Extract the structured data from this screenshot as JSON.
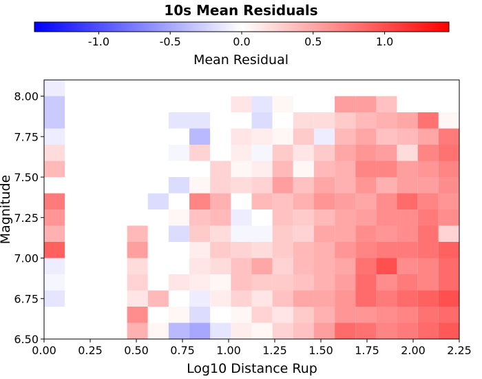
{
  "chart_data": {
    "type": "heatmap",
    "title": "10s Mean Residuals",
    "xlabel": "Log10 Distance Rup",
    "ylabel": "Magnitude",
    "xlim": [
      0.0,
      2.25
    ],
    "ylim": [
      6.5,
      8.1
    ],
    "x_ticks": [
      "0.00",
      "0.25",
      "0.50",
      "0.75",
      "1.00",
      "1.25",
      "1.50",
      "1.75",
      "2.00",
      "2.25"
    ],
    "y_ticks": [
      "6.50",
      "6.75",
      "7.00",
      "7.25",
      "7.50",
      "7.75",
      "8.00"
    ],
    "colorbar": {
      "label": "Mean Residual",
      "range": [
        -1.45,
        1.45
      ],
      "ticks": [
        "-1.0",
        "-0.5",
        "0.0",
        "0.5",
        "1.0"
      ],
      "colors": [
        "#0000ff",
        "#ffffff",
        "#ff0000"
      ]
    },
    "grid": {
      "x_bin_edges": [
        0.0,
        0.1125
      ],
      "x_bin_width": 0.1125,
      "y_bin_start": 6.5,
      "y_bin_width": 0.1,
      "columns": 20,
      "rows": 16
    },
    "values": [
      [
        null,
        null,
        null,
        null,
        0.45,
        0.05,
        -0.4,
        -0.5,
        -0.15,
        0.1,
        0.05,
        0.25,
        0.35,
        0.55,
        0.85,
        0.8,
        0.7,
        0.75,
        0.85,
        0.95
      ],
      [
        null,
        null,
        null,
        null,
        0.65,
        0.0,
        0.05,
        -0.2,
        0.0,
        0.05,
        0.25,
        0.15,
        0.3,
        0.45,
        0.6,
        0.6,
        0.65,
        0.7,
        0.8,
        0.85
      ],
      [
        -0.15,
        null,
        null,
        null,
        0.15,
        0.4,
        0.0,
        -0.1,
        0.1,
        0.25,
        0.15,
        0.35,
        0.5,
        0.5,
        0.6,
        0.85,
        0.75,
        0.85,
        0.9,
        1.0
      ],
      [
        -0.05,
        null,
        null,
        null,
        0.25,
        0.0,
        0.15,
        0.1,
        0.05,
        0.35,
        0.3,
        0.3,
        0.35,
        0.45,
        0.55,
        0.85,
        0.65,
        0.75,
        0.7,
        0.85
      ],
      [
        -0.1,
        null,
        null,
        null,
        0.2,
        0.0,
        0.0,
        0.15,
        0.2,
        0.35,
        0.5,
        0.25,
        0.4,
        0.45,
        0.5,
        0.8,
        1.0,
        0.65,
        0.7,
        0.85
      ],
      [
        0.9,
        null,
        null,
        null,
        0.55,
        0.0,
        0.0,
        0.1,
        0.3,
        0.25,
        0.2,
        0.3,
        0.4,
        0.45,
        0.6,
        0.7,
        0.75,
        0.75,
        0.8,
        0.9
      ],
      [
        0.45,
        null,
        null,
        null,
        0.4,
        0.0,
        -0.2,
        0.3,
        0.2,
        -0.05,
        -0.05,
        0.3,
        0.25,
        0.5,
        0.5,
        0.65,
        0.6,
        0.65,
        0.8,
        0.25
      ],
      [
        0.6,
        null,
        null,
        null,
        null,
        0.0,
        0.05,
        0.35,
        0.4,
        -0.1,
        0.0,
        0.35,
        0.3,
        0.4,
        0.5,
        0.55,
        0.65,
        0.65,
        0.75,
        0.65
      ],
      [
        0.75,
        null,
        null,
        null,
        null,
        -0.2,
        0.0,
        0.7,
        0.45,
        0.0,
        0.4,
        0.35,
        0.45,
        0.6,
        0.55,
        0.5,
        0.65,
        0.85,
        0.7,
        0.6
      ],
      [
        0.0,
        null,
        null,
        null,
        null,
        null,
        -0.2,
        0.05,
        0.25,
        0.2,
        0.25,
        0.55,
        0.35,
        0.5,
        0.45,
        0.6,
        0.45,
        0.55,
        0.55,
        0.65
      ],
      [
        0.4,
        null,
        null,
        null,
        null,
        null,
        0.0,
        0.0,
        0.25,
        0.05,
        0.1,
        0.4,
        0.05,
        0.4,
        0.45,
        0.7,
        0.7,
        0.55,
        0.6,
        0.7
      ],
      [
        0.2,
        null,
        null,
        null,
        null,
        null,
        -0.05,
        0.25,
        0.0,
        0.1,
        -0.05,
        0.3,
        0.15,
        0.3,
        0.5,
        0.6,
        0.55,
        0.2,
        0.7,
        0.8
      ],
      [
        -0.1,
        null,
        null,
        null,
        null,
        null,
        0.0,
        -0.4,
        0.0,
        0.15,
        0.1,
        0.05,
        0.3,
        -0.1,
        0.4,
        0.5,
        0.35,
        0.4,
        0.5,
        0.75
      ],
      [
        -0.3,
        null,
        null,
        null,
        null,
        null,
        -0.15,
        -0.15,
        0.0,
        0.0,
        -0.2,
        0.0,
        0.2,
        0.2,
        0.3,
        0.4,
        0.45,
        0.5,
        0.8,
        0.05
      ],
      [
        -0.3,
        null,
        null,
        null,
        null,
        null,
        null,
        null,
        null,
        0.15,
        -0.15,
        0.05,
        0.0,
        0.0,
        0.55,
        0.55,
        0.35,
        0.0,
        0.0,
        0.0
      ],
      [
        -0.1,
        null,
        null,
        null,
        null,
        null,
        null,
        null,
        null,
        null,
        null,
        null,
        null,
        null,
        null,
        null,
        null,
        null,
        null,
        null
      ]
    ]
  }
}
